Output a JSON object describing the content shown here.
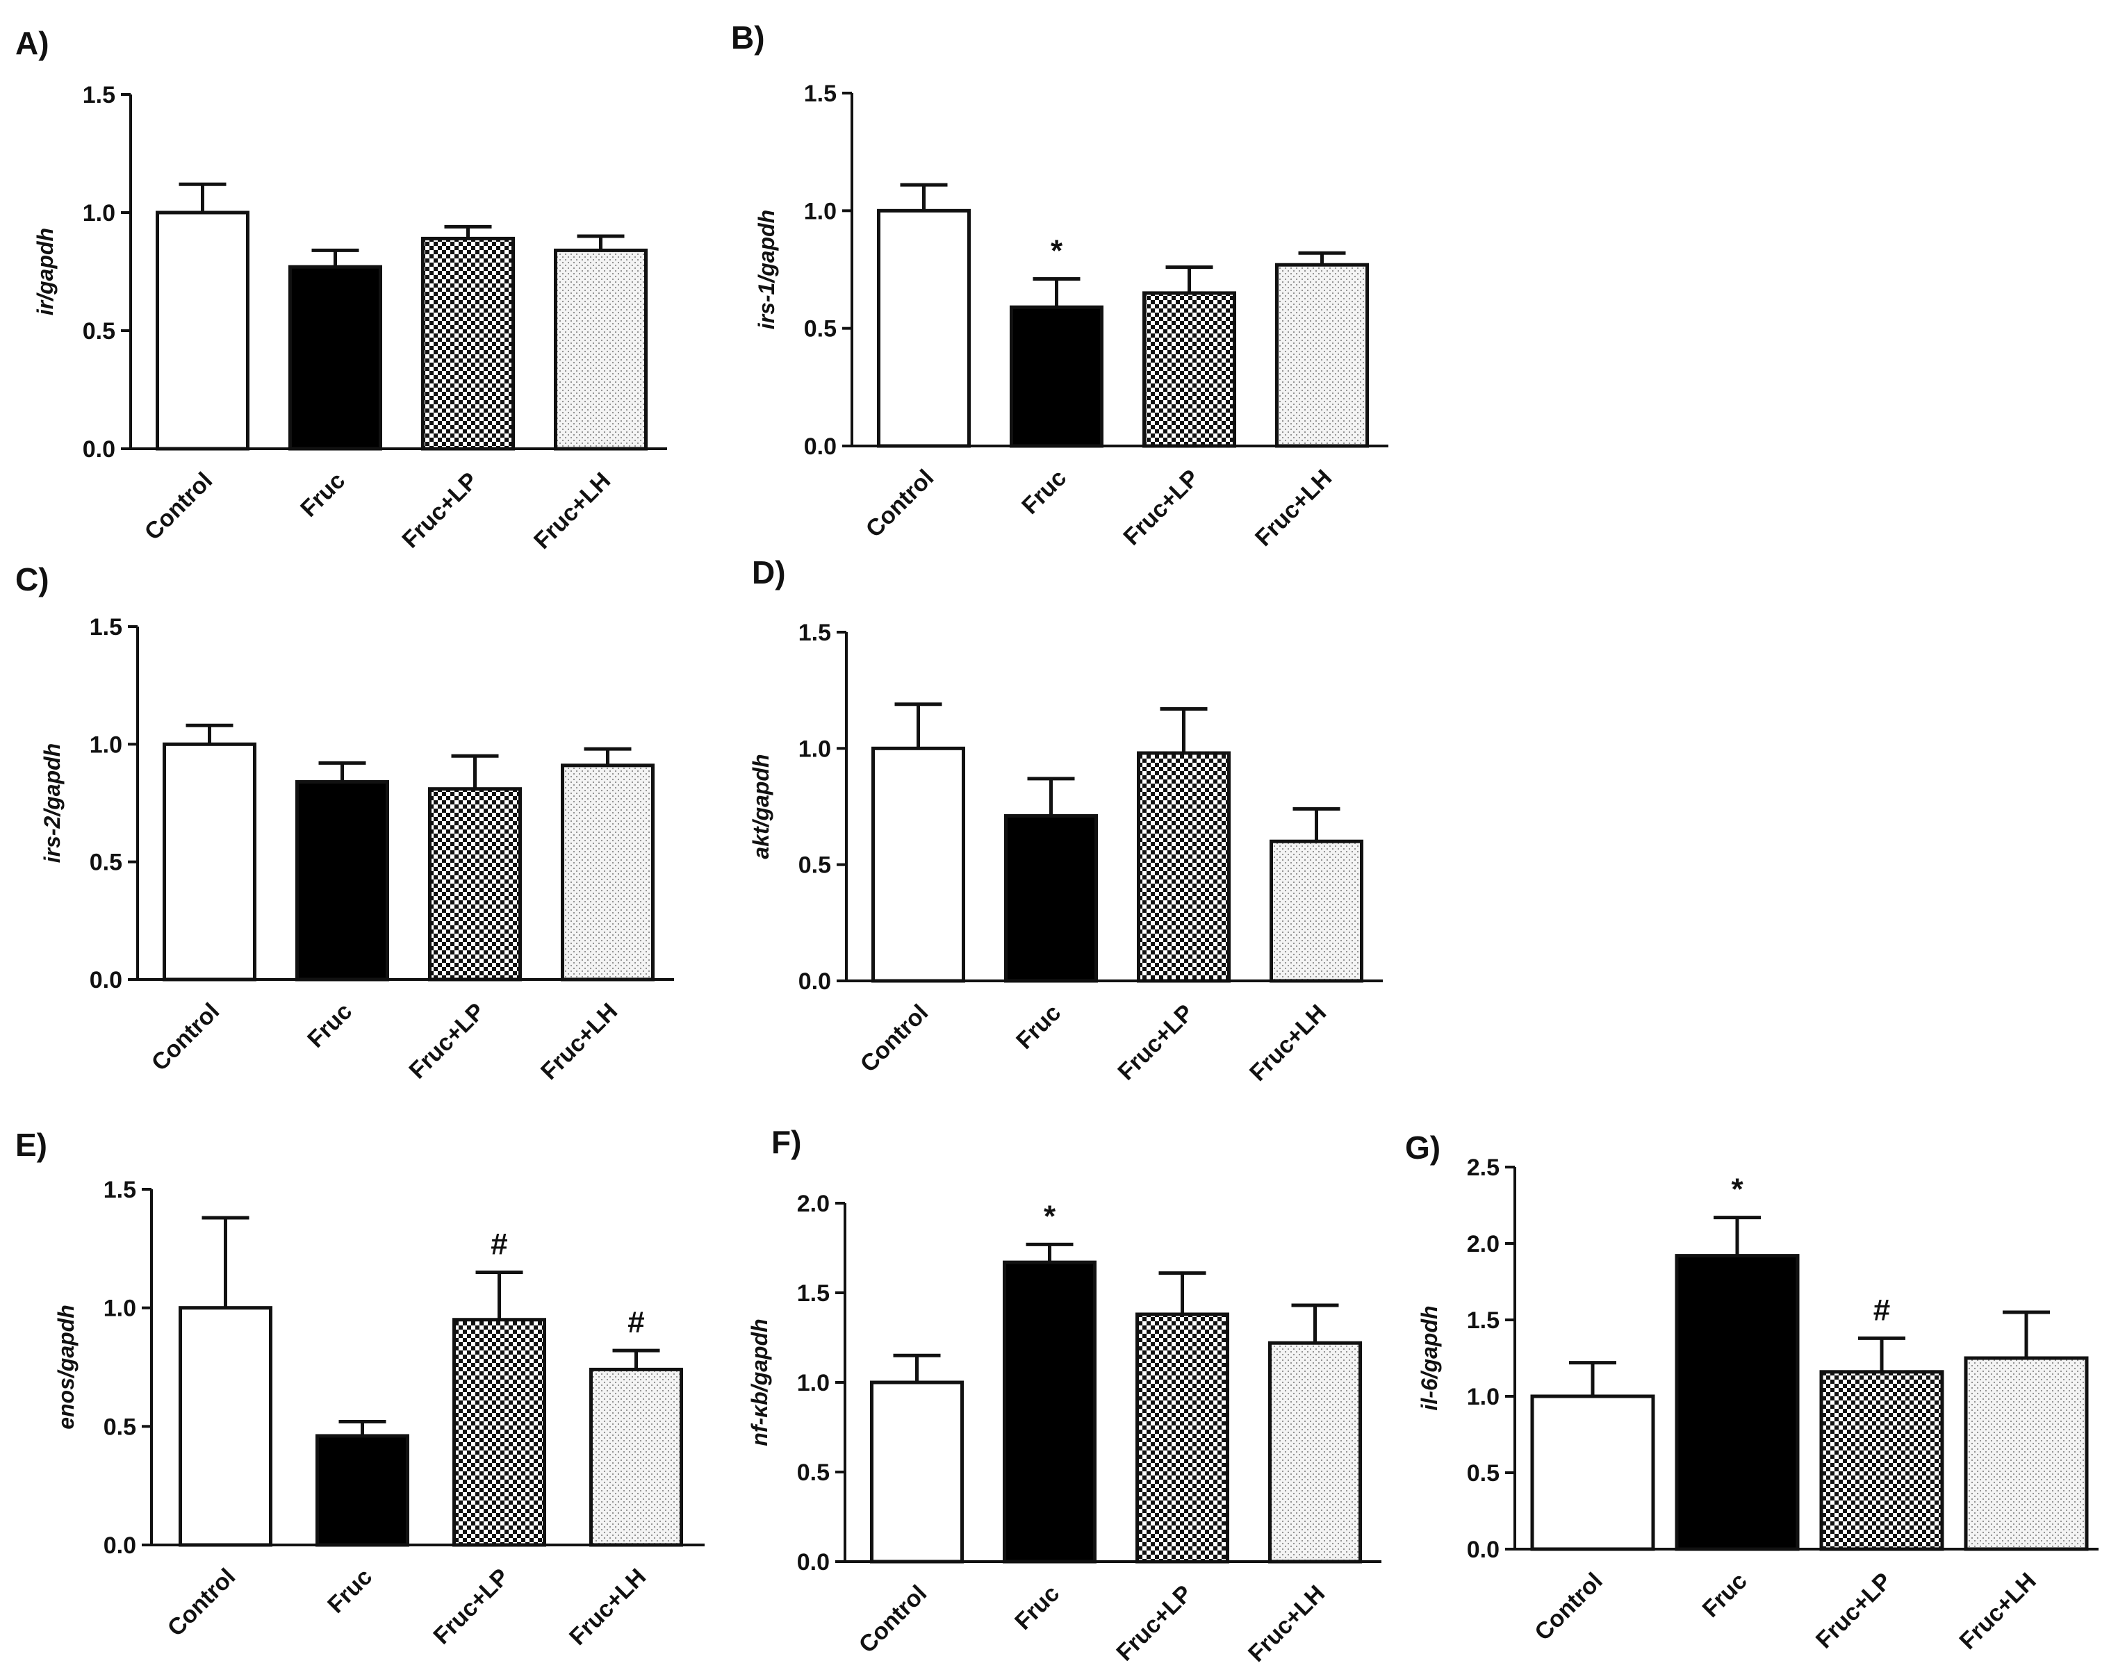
{
  "figure": {
    "panel_count": 7
  },
  "chart_data": [
    {
      "panel_label": "A)",
      "type": "bar",
      "categories": [
        "Control",
        "Fruc",
        "Fruc+LP",
        "Fruc+LH"
      ],
      "values": [
        1.0,
        0.77,
        0.89,
        0.84
      ],
      "errors": [
        0.12,
        0.07,
        0.05,
        0.06
      ],
      "annotations": [
        "",
        "",
        "",
        ""
      ],
      "ylabel": "ir/gapdh",
      "ylim": [
        0,
        1.5
      ],
      "yticks": [
        "0.0",
        "0.5",
        "1.0",
        "1.5"
      ],
      "fills": [
        "white",
        "black",
        "checker",
        "dots"
      ]
    },
    {
      "panel_label": "B)",
      "type": "bar",
      "categories": [
        "Control",
        "Fruc",
        "Fruc+LP",
        "Fruc+LH"
      ],
      "values": [
        1.0,
        0.59,
        0.65,
        0.77
      ],
      "errors": [
        0.11,
        0.12,
        0.11,
        0.05
      ],
      "annotations": [
        "",
        "*",
        "",
        ""
      ],
      "ylabel": "irs-1/gapdh",
      "ylim": [
        0,
        1.5
      ],
      "yticks": [
        "0.0",
        "0.5",
        "1.0",
        "1.5"
      ],
      "fills": [
        "white",
        "black",
        "checker",
        "dots"
      ]
    },
    {
      "panel_label": "C)",
      "type": "bar",
      "categories": [
        "Control",
        "Fruc",
        "Fruc+LP",
        "Fruc+LH"
      ],
      "values": [
        1.0,
        0.84,
        0.81,
        0.91
      ],
      "errors": [
        0.08,
        0.08,
        0.14,
        0.07
      ],
      "annotations": [
        "",
        "",
        "",
        ""
      ],
      "ylabel": "irs-2/gapdh",
      "ylim": [
        0,
        1.5
      ],
      "yticks": [
        "0.0",
        "0.5",
        "1.0",
        "1.5"
      ],
      "fills": [
        "white",
        "black",
        "checker",
        "dots"
      ]
    },
    {
      "panel_label": "D)",
      "type": "bar",
      "categories": [
        "Control",
        "Fruc",
        "Fruc+LP",
        "Fruc+LH"
      ],
      "values": [
        1.0,
        0.71,
        0.98,
        0.6
      ],
      "errors": [
        0.19,
        0.16,
        0.19,
        0.14
      ],
      "annotations": [
        "",
        "",
        "",
        ""
      ],
      "ylabel": "akt/gapdh",
      "ylim": [
        0,
        1.5
      ],
      "yticks": [
        "0.0",
        "0.5",
        "1.0",
        "1.5"
      ],
      "fills": [
        "white",
        "black",
        "checker",
        "dots"
      ]
    },
    {
      "panel_label": "E)",
      "type": "bar",
      "categories": [
        "Control",
        "Fruc",
        "Fruc+LP",
        "Fruc+LH"
      ],
      "values": [
        1.0,
        0.46,
        0.95,
        0.74
      ],
      "errors": [
        0.38,
        0.06,
        0.2,
        0.08
      ],
      "annotations": [
        "",
        "",
        "#",
        "#"
      ],
      "ylabel": "enos/gapdh",
      "ylim": [
        0,
        1.5
      ],
      "yticks": [
        "0.0",
        "0.5",
        "1.0",
        "1.5"
      ],
      "fills": [
        "white",
        "black",
        "checker",
        "dots"
      ]
    },
    {
      "panel_label": "F)",
      "type": "bar",
      "categories": [
        "Control",
        "Fruc",
        "Fruc+LP",
        "Fruc+LH"
      ],
      "values": [
        1.0,
        1.67,
        1.38,
        1.22
      ],
      "errors": [
        0.15,
        0.1,
        0.23,
        0.21
      ],
      "annotations": [
        "",
        "*",
        "",
        ""
      ],
      "ylabel": "nf-κb/gapdh",
      "ylim": [
        0,
        2.0
      ],
      "yticks": [
        "0.0",
        "0.5",
        "1.0",
        "1.5",
        "2.0"
      ],
      "fills": [
        "white",
        "black",
        "checker",
        "dots"
      ]
    },
    {
      "panel_label": "G)",
      "type": "bar",
      "categories": [
        "Control",
        "Fruc",
        "Fruc+LP",
        "Fruc+LH"
      ],
      "values": [
        1.0,
        1.92,
        1.16,
        1.25
      ],
      "errors": [
        0.22,
        0.25,
        0.22,
        0.3
      ],
      "annotations": [
        "",
        "*",
        "#",
        ""
      ],
      "ylabel": "il-6/gapdh",
      "ylim": [
        0,
        2.5
      ],
      "yticks": [
        "0.0",
        "0.5",
        "1.0",
        "1.5",
        "2.0",
        "2.5"
      ],
      "fills": [
        "white",
        "black",
        "checker",
        "dots"
      ]
    }
  ]
}
